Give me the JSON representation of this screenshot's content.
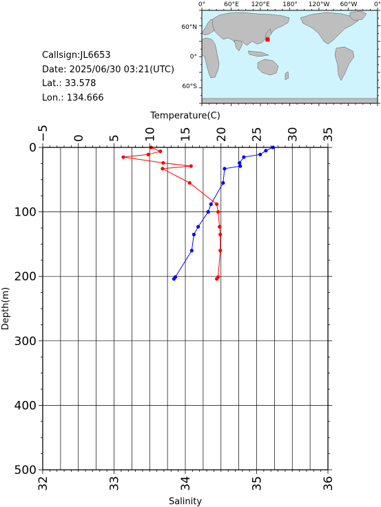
{
  "info": {
    "callsign": "Callsign:JL6653",
    "date": "Date:  2025/06/30 03:21(UTC)",
    "lat": "Lat.:  33.578",
    "lon": "Lon.:  134.666"
  },
  "map": {
    "lon_labels": [
      "0°",
      "60°E",
      "120°E",
      "180°",
      "120°W",
      "60°W",
      "0°"
    ],
    "lat_labels": [
      "60°N",
      "0°",
      "60°S"
    ],
    "ocean_color": "#cff4fd",
    "land_color": "#bebebe",
    "marker_color": "#ff0000",
    "marker_lon": 134.666,
    "marker_lat": 33.578
  },
  "chart_data": {
    "type": "line",
    "top_axis_label": "Temperature(C)",
    "bottom_axis_label": "Salinity",
    "ylabel": "Depth(m)",
    "temperature_range": [
      -5,
      35
    ],
    "salinity_range": [
      32,
      36
    ],
    "depth_range": [
      0,
      500
    ],
    "temperature_ticks": [
      "−5",
      "0",
      "5",
      "10",
      "15",
      "20",
      "25",
      "30",
      "35"
    ],
    "salinity_ticks": [
      "32",
      "33",
      "34",
      "35",
      "36"
    ],
    "depth_ticks": [
      "0",
      "100",
      "200",
      "300",
      "400",
      "500"
    ],
    "grid": true,
    "series": [
      {
        "axis": "temperature",
        "color": "#0000ff",
        "points": [
          [
            27.3,
            0
          ],
          [
            26.3,
            5
          ],
          [
            25.5,
            11
          ],
          [
            23.2,
            15
          ],
          [
            22.6,
            24
          ],
          [
            22.7,
            29
          ],
          [
            20.5,
            33
          ],
          [
            20.3,
            55
          ],
          [
            18.6,
            88
          ],
          [
            18.2,
            100
          ],
          [
            16.8,
            123
          ],
          [
            16.2,
            135
          ],
          [
            15.9,
            160
          ],
          [
            13.6,
            201
          ],
          [
            13.4,
            204
          ]
        ]
      },
      {
        "axis": "salinity",
        "color": "#ff0000",
        "points": [
          [
            33.52,
            0
          ],
          [
            33.65,
            6
          ],
          [
            33.48,
            11
          ],
          [
            33.13,
            15
          ],
          [
            33.69,
            24
          ],
          [
            34.08,
            29
          ],
          [
            33.68,
            33
          ],
          [
            34.06,
            55
          ],
          [
            34.44,
            88
          ],
          [
            34.46,
            100
          ],
          [
            34.48,
            123
          ],
          [
            34.49,
            135
          ],
          [
            34.49,
            160
          ],
          [
            34.46,
            201
          ],
          [
            34.44,
            204
          ]
        ]
      }
    ]
  }
}
